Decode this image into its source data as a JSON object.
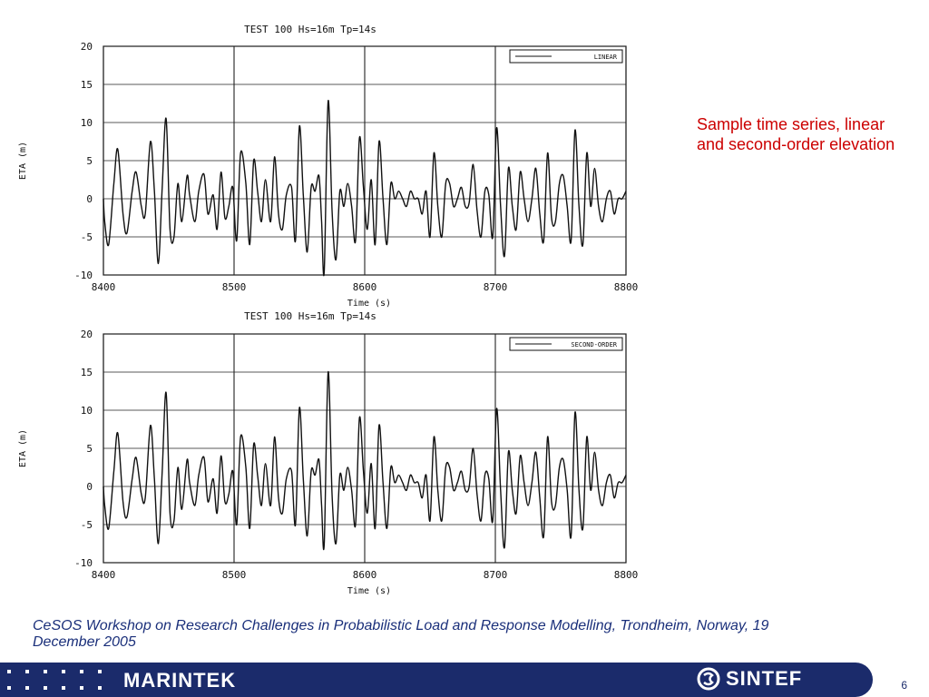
{
  "chart_data": [
    {
      "type": "line",
      "title": "TEST 100  Hs=16m  Tp=14s",
      "xlabel": "Time (s)",
      "ylabel": "ETA (m)",
      "xlim": [
        8400,
        8800
      ],
      "ylim": [
        -10,
        20
      ],
      "xticks": [
        8400,
        8500,
        8600,
        8700,
        8800
      ],
      "yticks": [
        -10,
        -5,
        0,
        5,
        10,
        15,
        20
      ],
      "grid": true,
      "legend_placement": "top-right",
      "series": [
        {
          "name": "LINEAR",
          "x": [
            8400,
            8401,
            8404,
            8408,
            8411,
            8415,
            8418,
            8422,
            8425,
            8429,
            8432,
            8436,
            8439,
            8442,
            8445,
            8448,
            8451,
            8454,
            8457,
            8460,
            8464,
            8466,
            8470,
            8473,
            8477,
            8480,
            8484,
            8487,
            8490,
            8493,
            8496,
            8499,
            8502,
            8505,
            8509,
            8512,
            8515,
            8518,
            8521,
            8524,
            8528,
            8531,
            8534,
            8537,
            8540,
            8544,
            8547,
            8550,
            8553,
            8556,
            8559,
            8562,
            8565,
            8567,
            8569,
            8572,
            8575,
            8578,
            8581,
            8584,
            8587,
            8590,
            8593,
            8596,
            8599,
            8602,
            8605,
            8608,
            8611,
            8614,
            8617,
            8620,
            8623,
            8626,
            8629,
            8632,
            8635,
            8638,
            8641,
            8644,
            8647,
            8650,
            8653,
            8656,
            8659,
            8662,
            8665,
            8668,
            8671,
            8674,
            8677,
            8680,
            8683,
            8686,
            8689,
            8692,
            8695,
            8698,
            8701,
            8704,
            8707,
            8710,
            8713,
            8716,
            8719,
            8722,
            8725,
            8728,
            8731,
            8734,
            8737,
            8740,
            8743,
            8746,
            8749,
            8752,
            8755,
            8758,
            8761,
            8764,
            8767,
            8770,
            8773,
            8776,
            8779,
            8782,
            8785,
            8788,
            8791,
            8794,
            8797,
            8800
          ],
          "y": [
            0,
            -3,
            -6,
            2,
            6.5,
            -2,
            -4.5,
            1,
            3.5,
            -1,
            -2,
            7.5,
            1,
            -8.5,
            1.5,
            10.5,
            -4,
            -5,
            2,
            -3,
            3,
            0.5,
            -3,
            1,
            3.2,
            -2,
            0.5,
            -4,
            3.5,
            -2.5,
            -1,
            1.5,
            -5.5,
            6,
            2,
            -6,
            5,
            1,
            -3,
            2.5,
            -3,
            5.5,
            -2,
            -4,
            0.5,
            1.5,
            -5.5,
            9.5,
            0.5,
            -7,
            1.5,
            1,
            3,
            -3,
            -9.5,
            12.8,
            -1.5,
            -8,
            1,
            -1,
            2,
            -1,
            -5.5,
            8,
            1.5,
            -4,
            2.5,
            -6,
            7.5,
            0,
            -6,
            2,
            0,
            1,
            0,
            -1,
            1,
            0,
            0,
            -2,
            1,
            -5,
            6,
            -1,
            -5,
            2,
            2,
            -1,
            0,
            1.5,
            -1,
            -0.5,
            4.5,
            -1.5,
            -5,
            1,
            0.5,
            -5,
            9.3,
            -1,
            -7.5,
            4,
            -1,
            -4,
            3.5,
            0,
            -3,
            0,
            4,
            -2,
            -5.5,
            6,
            -2.5,
            -3,
            2,
            3,
            -1,
            -5.5,
            9,
            -1,
            -6,
            6,
            -1,
            4,
            -1,
            -3,
            0,
            1,
            -2,
            0,
            0,
            1
          ],
          "color": "#111111"
        }
      ]
    },
    {
      "type": "line",
      "title": "TEST 100  Hs=16m  Tp=14s",
      "xlabel": "Time (s)",
      "ylabel": "ETA (m)",
      "xlim": [
        8400,
        8800
      ],
      "ylim": [
        -10,
        20
      ],
      "xticks": [
        8400,
        8500,
        8600,
        8700,
        8800
      ],
      "yticks": [
        -10,
        -5,
        0,
        5,
        10,
        15,
        20
      ],
      "grid": true,
      "legend_placement": "top-right",
      "series": [
        {
          "name": "SECOND-ORDER",
          "x": [
            8400,
            8401,
            8404,
            8408,
            8411,
            8415,
            8418,
            8422,
            8425,
            8429,
            8432,
            8436,
            8439,
            8442,
            8445,
            8448,
            8451,
            8454,
            8457,
            8460,
            8464,
            8466,
            8470,
            8473,
            8477,
            8480,
            8484,
            8487,
            8490,
            8493,
            8496,
            8499,
            8502,
            8505,
            8509,
            8512,
            8515,
            8518,
            8521,
            8524,
            8528,
            8531,
            8534,
            8537,
            8540,
            8544,
            8547,
            8550,
            8553,
            8556,
            8559,
            8562,
            8565,
            8567,
            8569,
            8572,
            8575,
            8578,
            8581,
            8584,
            8587,
            8590,
            8593,
            8596,
            8599,
            8602,
            8605,
            8608,
            8611,
            8614,
            8617,
            8620,
            8623,
            8626,
            8629,
            8632,
            8635,
            8638,
            8641,
            8644,
            8647,
            8650,
            8653,
            8656,
            8659,
            8662,
            8665,
            8668,
            8671,
            8674,
            8677,
            8680,
            8683,
            8686,
            8689,
            8692,
            8695,
            8698,
            8701,
            8704,
            8707,
            8710,
            8713,
            8716,
            8719,
            8722,
            8725,
            8728,
            8731,
            8734,
            8737,
            8740,
            8743,
            8746,
            8749,
            8752,
            8755,
            8758,
            8761,
            8764,
            8767,
            8770,
            8773,
            8776,
            8779,
            8782,
            8785,
            8788,
            8791,
            8794,
            8797,
            8800
          ],
          "y": [
            0,
            -2.5,
            -5.5,
            2,
            7,
            -2,
            -4,
            1,
            3.8,
            -1,
            -1.5,
            8,
            1,
            -7.5,
            2,
            12.3,
            -3.5,
            -4.5,
            2.5,
            -3,
            3.5,
            0.5,
            -2.5,
            1.5,
            3.8,
            -2,
            1,
            -3.5,
            4,
            -2,
            -1,
            2,
            -5,
            6.5,
            2.5,
            -5.5,
            5.5,
            1.5,
            -2.5,
            3,
            -2.5,
            6.5,
            -1.5,
            -3.5,
            1,
            2,
            -5,
            10.3,
            1,
            -6.5,
            2,
            1.5,
            3.5,
            -2.5,
            -7.5,
            15,
            -1,
            -7.5,
            1.5,
            -0.5,
            2.5,
            -0.5,
            -5,
            9,
            2,
            -3.5,
            3,
            -5.5,
            8,
            0.5,
            -5.5,
            2.5,
            0.5,
            1.5,
            0.5,
            -0.5,
            1.5,
            0.5,
            0.5,
            -1.5,
            1.5,
            -4.5,
            6.5,
            -0.5,
            -4.5,
            2.5,
            2.5,
            -0.5,
            0.5,
            2,
            -0.5,
            0,
            5,
            -1,
            -4.5,
            1.5,
            1,
            -4.5,
            10.2,
            -0.5,
            -8,
            4.5,
            -0.5,
            -3.5,
            4,
            0.5,
            -2.5,
            0.5,
            4.5,
            -1.5,
            -6.5,
            6.5,
            -2,
            -2.5,
            2.5,
            3.5,
            -0.5,
            -6.5,
            9.7,
            -0.5,
            -5.5,
            6.5,
            -0.5,
            4.5,
            -0.5,
            -2.5,
            0.5,
            1.5,
            -1.5,
            0.5,
            0.5,
            1.5
          ],
          "color": "#111111"
        }
      ]
    }
  ],
  "side_note": "Sample time series, linear and second-order elevation",
  "footer": {
    "caption": "CeSOS Workshop on Research Challenges in Probabilistic Load and Response Modelling, Trondheim, Norway, 19 December 2005",
    "brand_left": "MARINTEK",
    "brand_right": "SINTEF",
    "page_number": "6",
    "band_color": "#1b2b6b",
    "caption_color": "#1a2f7a"
  },
  "note_color": "#cc0000"
}
